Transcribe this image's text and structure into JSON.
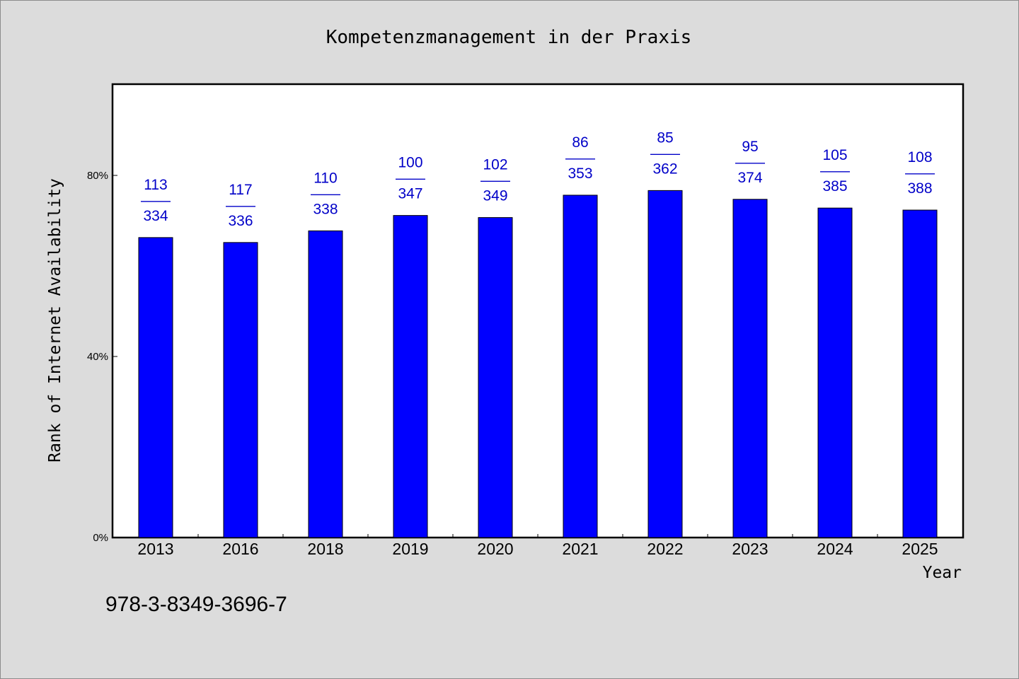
{
  "chart_data": {
    "type": "bar",
    "title": "Kompetenzmanagement in der Praxis",
    "xlabel": "Year",
    "ylabel": "Rank of Internet Availability",
    "categories": [
      "2013",
      "2016",
      "2018",
      "2019",
      "2020",
      "2021",
      "2022",
      "2023",
      "2024",
      "2025"
    ],
    "values": [
      0.6627,
      0.6518,
      0.6775,
      0.7115,
      0.7069,
      0.7563,
      0.7666,
      0.7472,
      0.7279,
      0.7234
    ],
    "rank": [
      113,
      117,
      110,
      100,
      102,
      86,
      85,
      95,
      105,
      108
    ],
    "total": [
      334,
      336,
      338,
      347,
      349,
      353,
      362,
      374,
      385,
      388
    ],
    "label_separator": "——",
    "ylim": [
      0,
      1
    ],
    "yticks": [
      0,
      0.4,
      0.8
    ],
    "ytick_labels": [
      "0%",
      "40%",
      "80%"
    ],
    "bar_color": "#0000ff",
    "label_color": "#0000c8",
    "grid": false,
    "legend": "none"
  },
  "footer": {
    "isbn": "978-3-8349-3696-7"
  }
}
